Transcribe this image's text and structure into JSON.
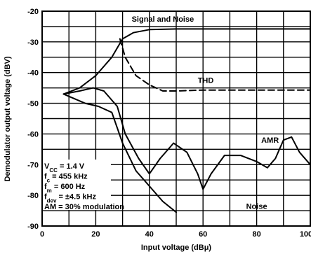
{
  "chart_data": {
    "type": "line",
    "xlabel": "Input voltage (dBμ)",
    "ylabel": "Demodulator output voltage (dBV)",
    "xlim": [
      0,
      100
    ],
    "ylim": [
      -90,
      -20
    ],
    "x_ticks": [
      "0",
      "20",
      "40",
      "60",
      "80",
      "100"
    ],
    "y_ticks": [
      "-20",
      "-30",
      "-40",
      "-50",
      "-60",
      "-70",
      "-80",
      "-90"
    ],
    "grid": true,
    "series": [
      {
        "name": "Signal and Noise",
        "style": "solid",
        "points": [
          [
            8,
            -47
          ],
          [
            14,
            -45
          ],
          [
            20,
            -41
          ],
          [
            26,
            -35
          ],
          [
            30,
            -29
          ],
          [
            34,
            -27
          ],
          [
            40,
            -26
          ],
          [
            50,
            -25.8
          ],
          [
            60,
            -25.8
          ],
          [
            80,
            -25.8
          ],
          [
            100,
            -25.8
          ]
        ]
      },
      {
        "name": "THD",
        "style": "dashed",
        "points": [
          [
            29,
            -29
          ],
          [
            31,
            -35
          ],
          [
            35,
            -41
          ],
          [
            40,
            -44
          ],
          [
            45,
            -46
          ],
          [
            50,
            -46
          ],
          [
            60,
            -45.7
          ],
          [
            100,
            -45.7
          ]
        ]
      },
      {
        "name": "AMR",
        "style": "solid",
        "points": [
          [
            8,
            -47
          ],
          [
            14,
            -46
          ],
          [
            19,
            -45
          ],
          [
            23,
            -46
          ],
          [
            28,
            -51
          ],
          [
            31,
            -60
          ],
          [
            36,
            -68
          ],
          [
            40,
            -73
          ],
          [
            44,
            -68
          ],
          [
            49,
            -63
          ],
          [
            54,
            -66
          ],
          [
            58,
            -73
          ],
          [
            60,
            -78
          ],
          [
            63,
            -73
          ],
          [
            68,
            -67
          ],
          [
            74,
            -67
          ],
          [
            80,
            -69
          ],
          [
            84,
            -71
          ],
          [
            87,
            -68
          ],
          [
            90,
            -62
          ],
          [
            93,
            -61
          ],
          [
            96,
            -66
          ],
          [
            100,
            -70
          ]
        ]
      },
      {
        "name": "Noise",
        "style": "solid",
        "points": [
          [
            8,
            -47
          ],
          [
            16,
            -50
          ],
          [
            21,
            -51
          ],
          [
            26,
            -53
          ],
          [
            30,
            -63
          ],
          [
            35,
            -72
          ],
          [
            40,
            -77
          ],
          [
            45,
            -82
          ],
          [
            50,
            -85.5
          ]
        ]
      }
    ],
    "annotations": [
      {
        "text": "Signal  and Noise",
        "x": 45,
        "y": -22.5
      },
      {
        "text": "THD",
        "x": 61,
        "y": -42.5
      },
      {
        "text": "AMR",
        "x": 85,
        "y": -62
      },
      {
        "text": "Noise",
        "x": 80,
        "y": -83.5
      }
    ],
    "conditions": [
      {
        "main": "V",
        "sub": "CC",
        "rest": " = 1.4 V"
      },
      {
        "main": "f",
        "sub": "c",
        "rest": " = 455 kHz"
      },
      {
        "main": "f",
        "sub": "m",
        "rest": " = 600 Hz"
      },
      {
        "main": "f",
        "sub": "dev",
        "rest": " = ±4.5 kHz"
      },
      {
        "main": "AM = 30% modulation",
        "sub": "",
        "rest": ""
      }
    ]
  }
}
